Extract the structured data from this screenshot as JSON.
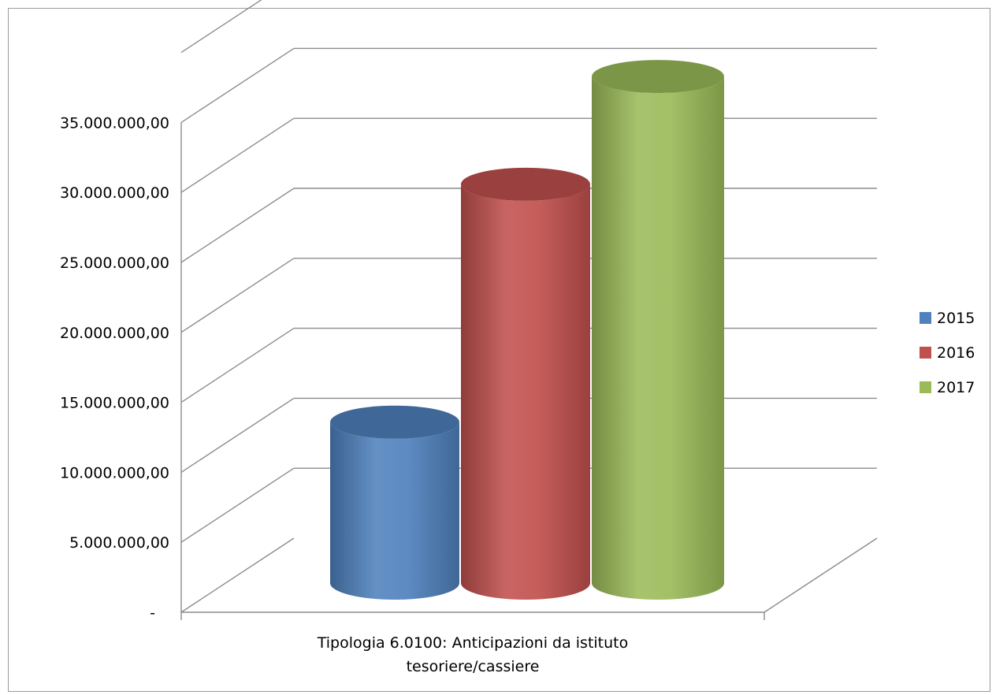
{
  "chart_data": {
    "type": "bar",
    "style": "3d-cylinder",
    "title": "",
    "xlabel": "",
    "ylabel": "",
    "categories": [
      "Tipologia 6.0100: Anticipazioni da istituto tesoriere/cassiere"
    ],
    "category_label_lines": [
      "Tipologia 6.0100: Anticipazioni da istituto",
      "tesoriere/cassiere"
    ],
    "series": [
      {
        "name": "2015",
        "values": [
          11500000
        ],
        "color": "#4f81bd"
      },
      {
        "name": "2016",
        "values": [
          28500000
        ],
        "color": "#c0504d"
      },
      {
        "name": "2017",
        "values": [
          36200000
        ],
        "color": "#9bbb59"
      }
    ],
    "ylim": [
      0,
      35000000
    ],
    "y_ticks": [
      {
        "value": 0,
        "label": "-"
      },
      {
        "value": 5000000,
        "label": "5.000.000,00"
      },
      {
        "value": 10000000,
        "label": "10.000.000,00"
      },
      {
        "value": 15000000,
        "label": "15.000.000,00"
      },
      {
        "value": 20000000,
        "label": "20.000.000,00"
      },
      {
        "value": 25000000,
        "label": "25.000.000,00"
      },
      {
        "value": 30000000,
        "label": "30.000.000,00"
      },
      {
        "value": 35000000,
        "label": "35.000.000,00"
      }
    ],
    "grid": true,
    "legend": "right"
  }
}
